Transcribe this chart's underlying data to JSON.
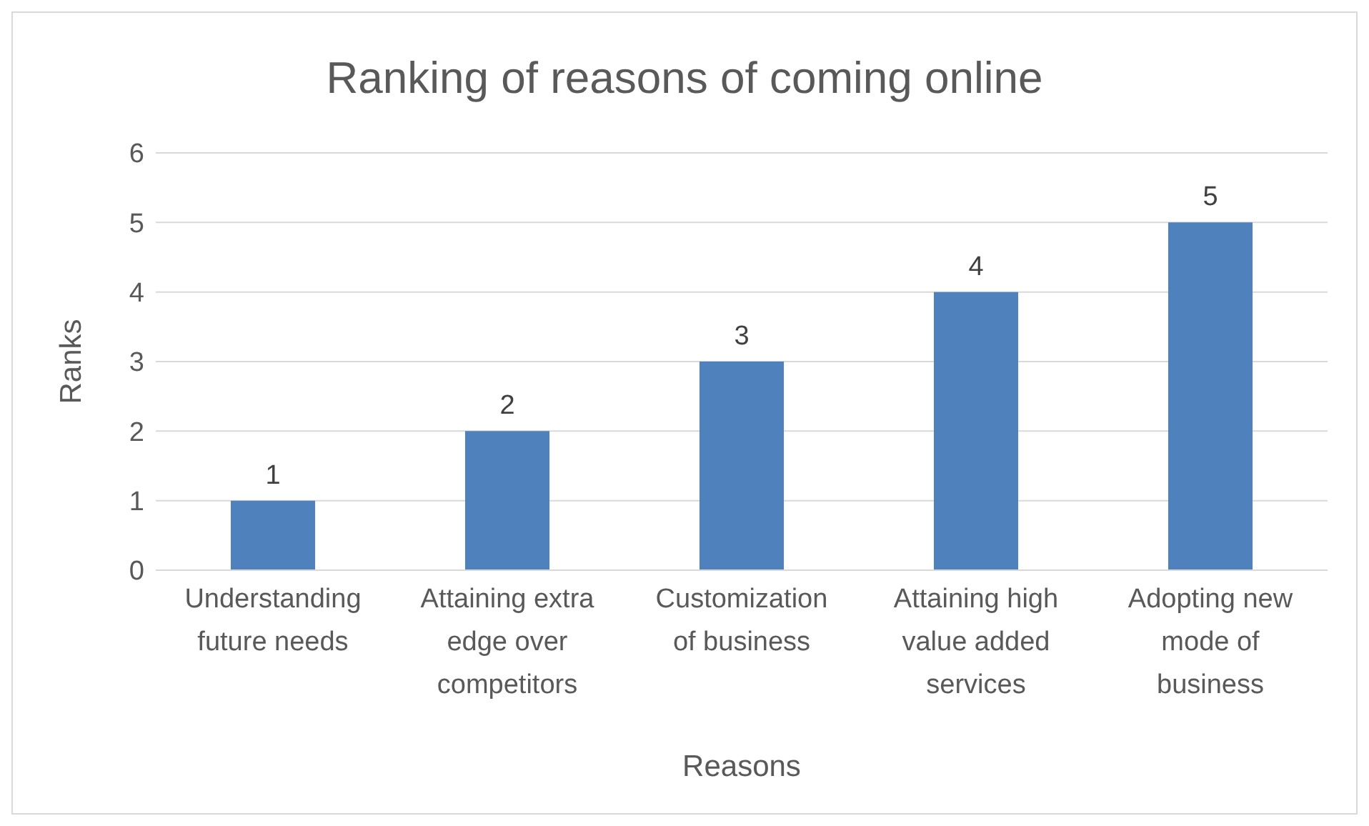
{
  "chart_data": {
    "type": "bar",
    "title": "Ranking of reasons of coming online",
    "xlabel": "Reasons",
    "ylabel": "Ranks",
    "categories": [
      "Understanding future needs",
      "Attaining extra edge over competitors",
      "Customization of business",
      "Attaining high value added services",
      "Adopting new mode of business"
    ],
    "values": [
      1,
      2,
      3,
      4,
      5
    ],
    "color": "#4f81bd",
    "ylim": [
      0,
      6
    ],
    "yticks": [
      0,
      1,
      2,
      3,
      4,
      5,
      6
    ],
    "grid": "y",
    "data_labels": true,
    "legend": false
  }
}
